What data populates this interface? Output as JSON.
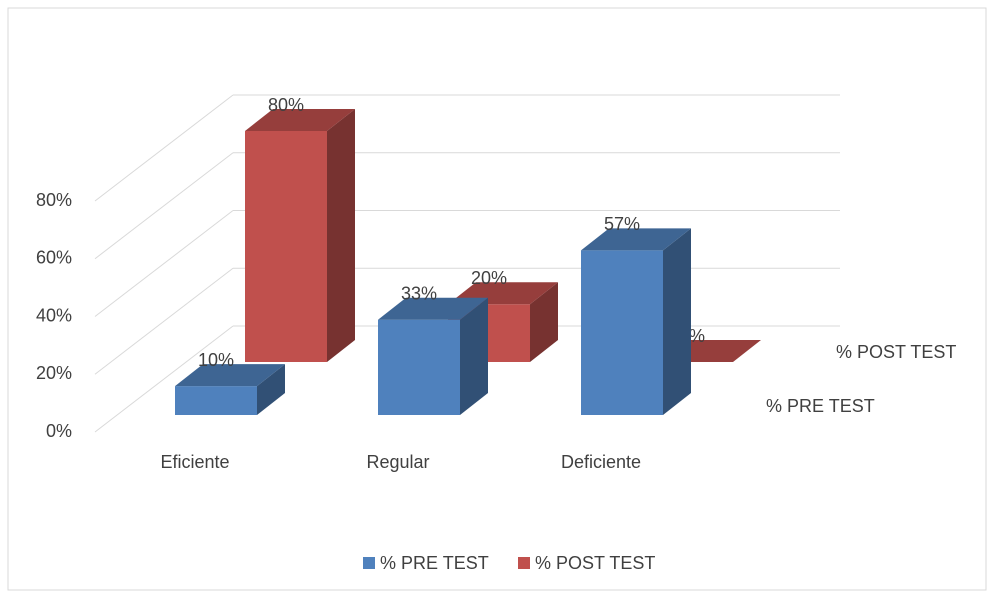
{
  "chart_data": {
    "type": "bar3d",
    "categories": [
      "Eficiente",
      "Regular",
      "Deficiente"
    ],
    "series": [
      {
        "name": "% PRE TEST",
        "color": "#4f81bd",
        "values": [
          10,
          33,
          57
        ],
        "value_labels": [
          "10%",
          "33%",
          "57%"
        ]
      },
      {
        "name": "% POST TEST",
        "color": "#c0504d",
        "values": [
          80,
          20,
          0
        ],
        "value_labels": [
          "80%",
          "20%",
          "0%"
        ]
      }
    ],
    "ylim": [
      0,
      80
    ],
    "yticks": [
      {
        "value": 0,
        "label": "0%"
      },
      {
        "value": 20,
        "label": "20%"
      },
      {
        "value": 40,
        "label": "40%"
      },
      {
        "value": 60,
        "label": "60%"
      },
      {
        "value": 80,
        "label": "80%"
      }
    ],
    "grid": true,
    "legend": "bottom"
  }
}
